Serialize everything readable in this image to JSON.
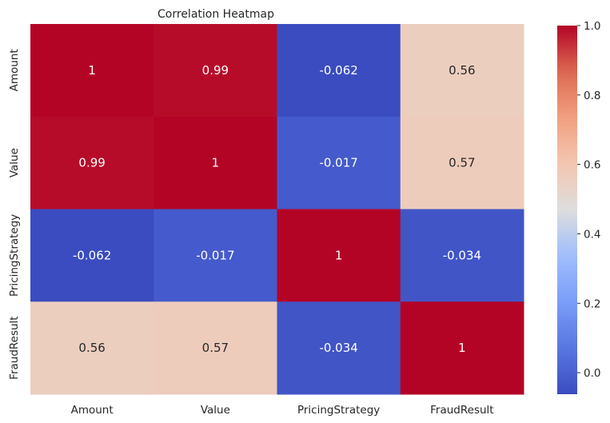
{
  "chart_data": {
    "type": "heatmap",
    "title": "Correlation Heatmap",
    "xlabel": "",
    "ylabel": "",
    "x_categories": [
      "Amount",
      "Value",
      "PricingStrategy",
      "FraudResult"
    ],
    "y_categories": [
      "Amount",
      "Value",
      "PricingStrategy",
      "FraudResult"
    ],
    "values": [
      [
        1,
        0.99,
        -0.062,
        0.56
      ],
      [
        0.99,
        1,
        -0.017,
        0.57
      ],
      [
        -0.062,
        -0.017,
        1,
        -0.034
      ],
      [
        0.56,
        0.57,
        -0.034,
        1
      ]
    ],
    "value_labels": [
      [
        "1",
        "0.99",
        "-0.062",
        "0.56"
      ],
      [
        "0.99",
        "1",
        "-0.017",
        "0.57"
      ],
      [
        "-0.062",
        "-0.017",
        "1",
        "-0.034"
      ],
      [
        "0.56",
        "0.57",
        "-0.034",
        "1"
      ]
    ],
    "colormap": "coolwarm",
    "colorbar": {
      "min": -0.062,
      "max": 1.0,
      "ticks": [
        0.0,
        0.2,
        0.4,
        0.6,
        0.8,
        1.0
      ],
      "tick_labels": [
        "0.0",
        "0.2",
        "0.4",
        "0.6",
        "0.8",
        "1.0"
      ]
    },
    "grid": false,
    "annotations": true
  }
}
